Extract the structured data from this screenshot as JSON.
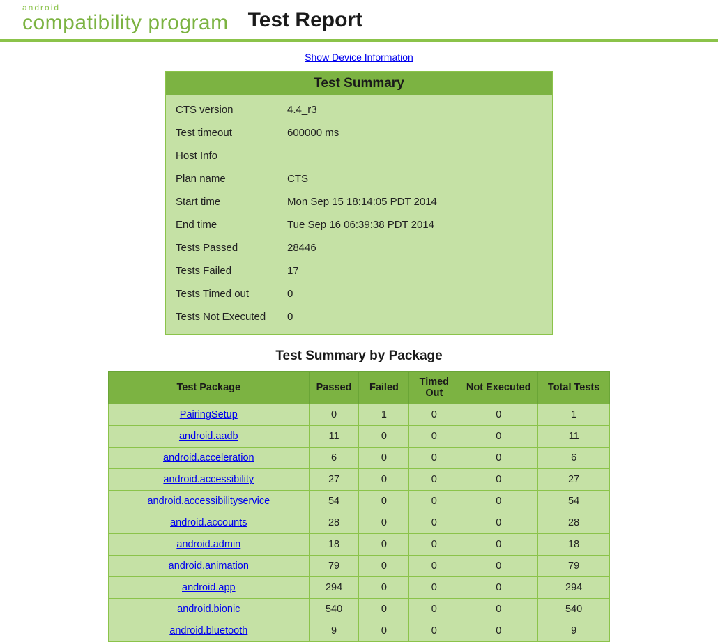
{
  "header": {
    "logo_top": "android",
    "logo_main": "compatibility program",
    "title": "Test Report"
  },
  "device_link": "Show Device Information",
  "summary": {
    "title": "Test Summary",
    "rows": [
      {
        "label": "CTS version",
        "value": "4.4_r3"
      },
      {
        "label": "Test timeout",
        "value": "600000 ms"
      },
      {
        "label": "Host Info",
        "value": ""
      },
      {
        "label": "Plan name",
        "value": "CTS"
      },
      {
        "label": "Start time",
        "value": "Mon Sep 15 18:14:05 PDT 2014"
      },
      {
        "label": "End time",
        "value": "Tue Sep 16 06:39:38 PDT 2014"
      },
      {
        "label": "Tests Passed",
        "value": "28446"
      },
      {
        "label": "Tests Failed",
        "value": "17"
      },
      {
        "label": "Tests Timed out",
        "value": "0"
      },
      {
        "label": "Tests Not Executed",
        "value": "0"
      }
    ]
  },
  "packages": {
    "title": "Test Summary by Package",
    "columns": [
      "Test Package",
      "Passed",
      "Failed",
      "Timed Out",
      "Not Executed",
      "Total Tests"
    ],
    "rows": [
      {
        "name": "PairingSetup",
        "passed": "0",
        "failed": "1",
        "timed_out": "0",
        "not_executed": "0",
        "total": "1"
      },
      {
        "name": "android.aadb",
        "passed": "11",
        "failed": "0",
        "timed_out": "0",
        "not_executed": "0",
        "total": "11"
      },
      {
        "name": "android.acceleration",
        "passed": "6",
        "failed": "0",
        "timed_out": "0",
        "not_executed": "0",
        "total": "6"
      },
      {
        "name": "android.accessibility",
        "passed": "27",
        "failed": "0",
        "timed_out": "0",
        "not_executed": "0",
        "total": "27"
      },
      {
        "name": "android.accessibilityservice",
        "passed": "54",
        "failed": "0",
        "timed_out": "0",
        "not_executed": "0",
        "total": "54"
      },
      {
        "name": "android.accounts",
        "passed": "28",
        "failed": "0",
        "timed_out": "0",
        "not_executed": "0",
        "total": "28"
      },
      {
        "name": "android.admin",
        "passed": "18",
        "failed": "0",
        "timed_out": "0",
        "not_executed": "0",
        "total": "18"
      },
      {
        "name": "android.animation",
        "passed": "79",
        "failed": "0",
        "timed_out": "0",
        "not_executed": "0",
        "total": "79"
      },
      {
        "name": "android.app",
        "passed": "294",
        "failed": "0",
        "timed_out": "0",
        "not_executed": "0",
        "total": "294"
      },
      {
        "name": "android.bionic",
        "passed": "540",
        "failed": "0",
        "timed_out": "0",
        "not_executed": "0",
        "total": "540"
      },
      {
        "name": "android.bluetooth",
        "passed": "9",
        "failed": "0",
        "timed_out": "0",
        "not_executed": "0",
        "total": "9"
      }
    ]
  },
  "colors": {
    "accent_green": "#7cb342",
    "light_green": "#c5e1a5",
    "border_green": "#8bc34a",
    "link_blue": "#0000ee",
    "text": "#1a1a1a",
    "background": "#ffffff"
  }
}
